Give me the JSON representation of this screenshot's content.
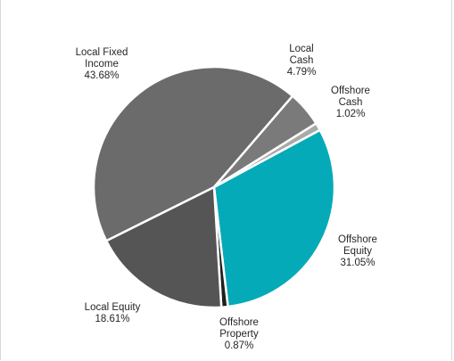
{
  "chart_data": {
    "type": "pie",
    "title": "",
    "slices": [
      {
        "label": [
          "Local Fixed",
          "Income"
        ],
        "value": 43.68,
        "text": "43.68%",
        "color": "#6b6b6b"
      },
      {
        "label": [
          "Local",
          "Cash"
        ],
        "value": 4.79,
        "text": "4.79%",
        "color": "#7a7a7a"
      },
      {
        "label": [
          "Offshore",
          "Cash"
        ],
        "value": 1.02,
        "text": "1.02%",
        "color": "#a9a9a9"
      },
      {
        "label": [
          "Offshore",
          "Equity"
        ],
        "value": 31.05,
        "text": "31.05%",
        "color": "#05aab8"
      },
      {
        "label": [
          "Offshore",
          "Property"
        ],
        "value": 0.87,
        "text": "0.87%",
        "color": "#1f1f1f"
      },
      {
        "label": [
          "Local Equity"
        ],
        "value": 18.61,
        "text": "18.61%",
        "color": "#555555"
      }
    ],
    "start_angle_deg": 243.5,
    "direction": "clockwise",
    "legend": "none"
  }
}
